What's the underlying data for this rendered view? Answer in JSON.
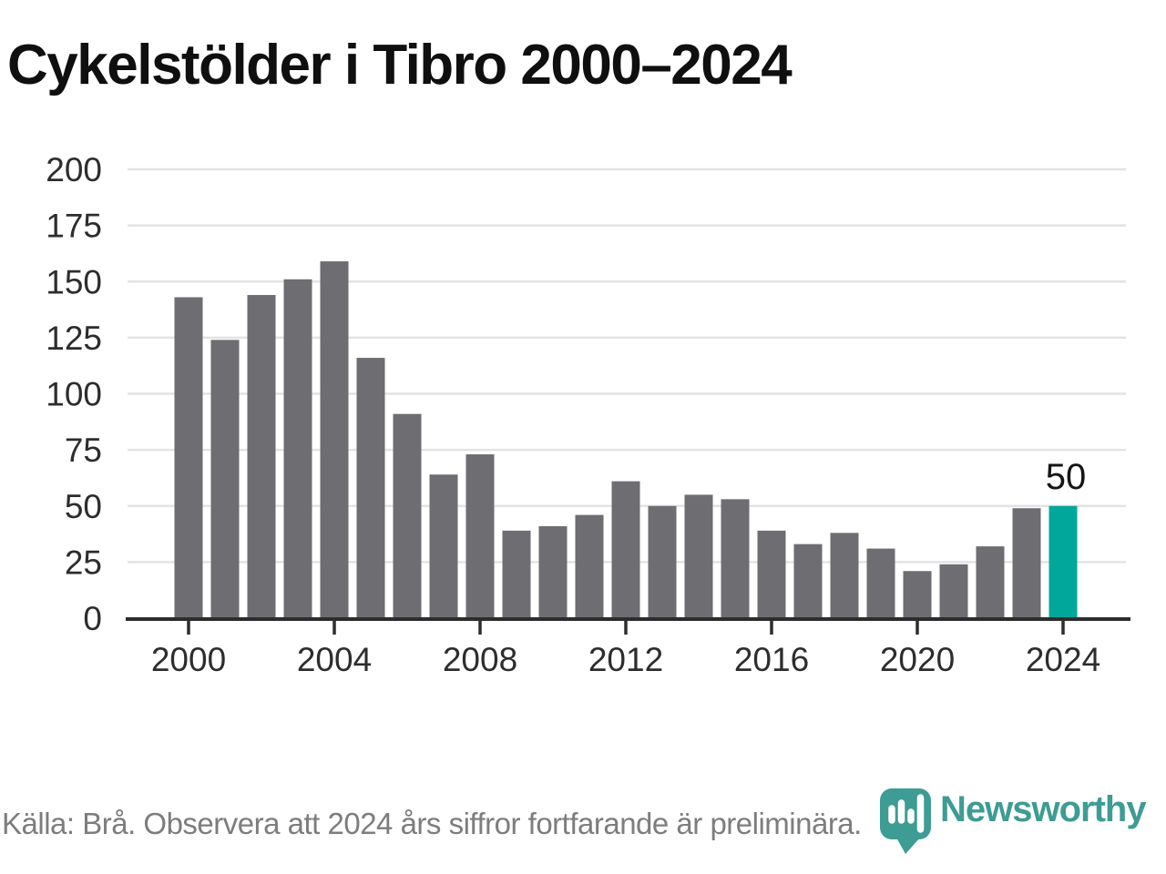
{
  "title": "Cykelstölder i Tibro 2000–2024",
  "footer": {
    "source_note": "Källa: Brå. Observera att 2024 års siffror fortfarande är preliminära.",
    "brand": "Newsworthy"
  },
  "colors": {
    "bar": "#6e6d72",
    "bar_highlight": "#00a79a",
    "brand_teal": "#3d9c94",
    "gridline": "#e3e3e3",
    "axis": "#2d2d2d",
    "tick_label": "#2d2d2d",
    "annotation": "#151515"
  },
  "chart_data": {
    "type": "bar",
    "title": "Cykelstölder i Tibro 2000–2024",
    "categories": [
      2000,
      2001,
      2002,
      2003,
      2004,
      2005,
      2006,
      2007,
      2008,
      2009,
      2010,
      2011,
      2012,
      2013,
      2014,
      2015,
      2016,
      2017,
      2018,
      2019,
      2020,
      2021,
      2022,
      2023,
      2024
    ],
    "values": [
      143,
      124,
      144,
      151,
      159,
      116,
      91,
      64,
      73,
      39,
      41,
      46,
      61,
      50,
      55,
      53,
      39,
      33,
      38,
      31,
      21,
      24,
      32,
      49,
      50
    ],
    "highlight_index": 24,
    "highlight_label": "50",
    "xlabel": "",
    "ylabel": "",
    "ylim": [
      0,
      200
    ],
    "y_ticks": [
      0,
      25,
      50,
      75,
      100,
      125,
      150,
      175,
      200
    ],
    "x_tick_years": [
      2000,
      2004,
      2008,
      2012,
      2016,
      2020,
      2024
    ],
    "grid": true,
    "legend": false
  }
}
